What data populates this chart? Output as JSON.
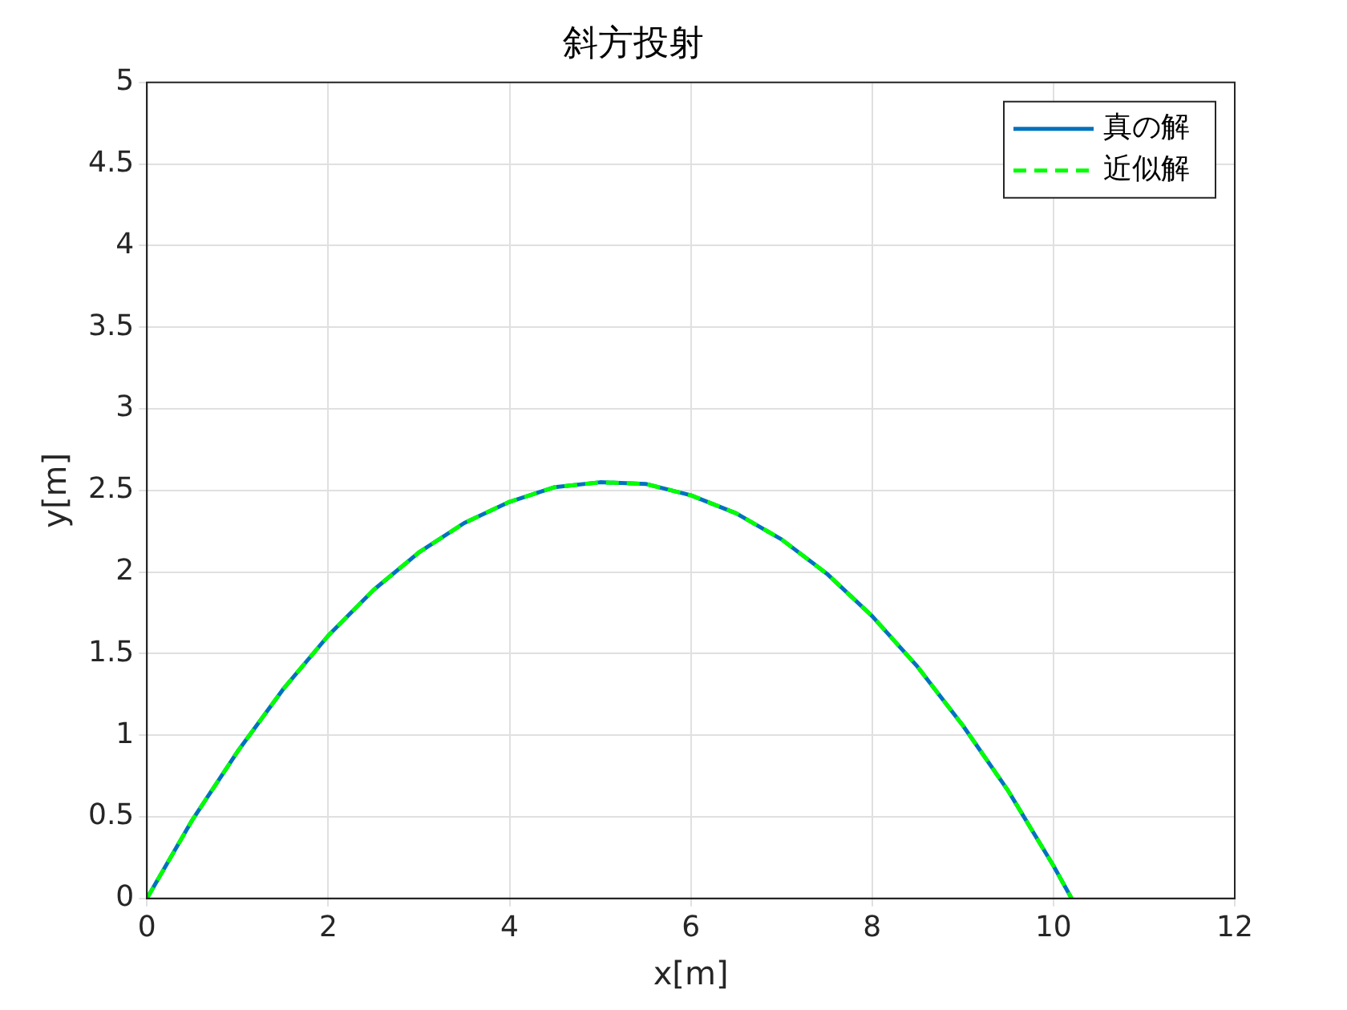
{
  "chart_data": {
    "type": "line",
    "title": "斜方投射",
    "xlabel": "x[m]",
    "ylabel": "y[m]",
    "x": [
      0,
      0.5,
      1,
      1.5,
      2,
      2.5,
      3,
      3.5,
      4,
      4.5,
      5,
      5.5,
      6,
      6.5,
      7,
      7.5,
      8,
      8.5,
      9,
      9.5,
      10,
      10.2
    ],
    "series": [
      {
        "name": "真の解",
        "color": "#0072bd",
        "line_style": "solid",
        "values": [
          0,
          0.48,
          0.9,
          1.28,
          1.61,
          1.89,
          2.12,
          2.3,
          2.43,
          2.52,
          2.55,
          2.54,
          2.47,
          2.36,
          2.2,
          1.99,
          1.73,
          1.42,
          1.06,
          0.66,
          0.2,
          0
        ]
      },
      {
        "name": "近似解",
        "color": "#00ff00",
        "line_style": "dashed",
        "values": [
          0,
          0.48,
          0.9,
          1.28,
          1.61,
          1.89,
          2.12,
          2.3,
          2.43,
          2.52,
          2.55,
          2.54,
          2.47,
          2.36,
          2.2,
          1.99,
          1.73,
          1.42,
          1.06,
          0.66,
          0.2,
          0
        ]
      }
    ],
    "xlim": [
      0,
      12
    ],
    "xticks": [
      0,
      2,
      4,
      6,
      8,
      10,
      12
    ],
    "ylim": [
      0,
      5
    ],
    "yticks": [
      0,
      0.5,
      1,
      1.5,
      2,
      2.5,
      3,
      3.5,
      4,
      4.5,
      5
    ],
    "grid": true,
    "legend": "top right",
    "marker": "none"
  }
}
